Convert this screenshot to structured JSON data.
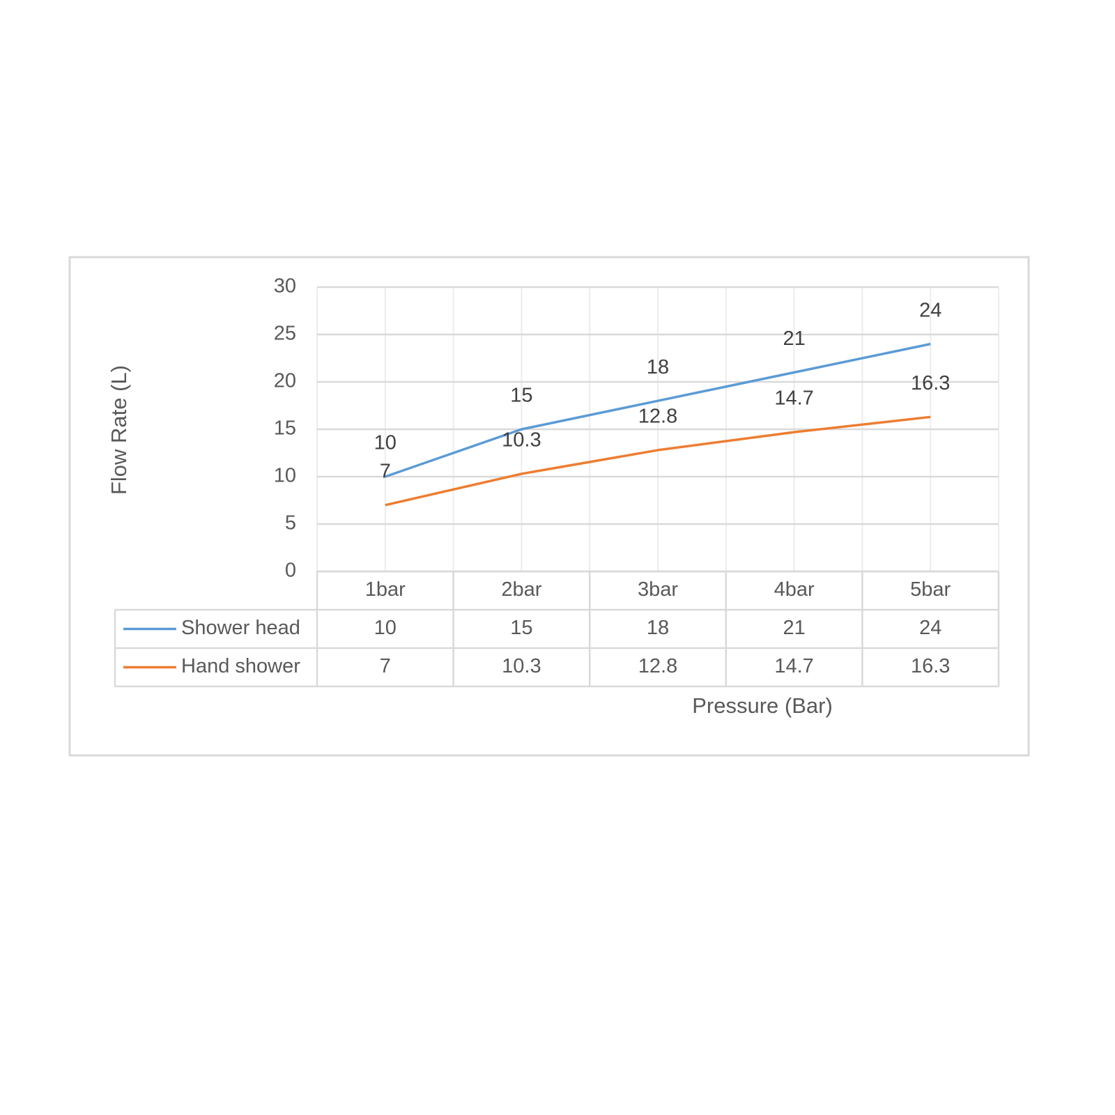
{
  "chart_data": {
    "type": "line",
    "x_label": "Pressure (Bar)",
    "y_label": "Flow Rate (L)",
    "categories": [
      "1bar",
      "2bar",
      "3bar",
      "4bar",
      "5bar"
    ],
    "series": [
      {
        "name": "Shower head",
        "color": "#5b9bd5",
        "values": [
          10,
          15,
          18,
          21,
          24
        ]
      },
      {
        "name": "Hand shower",
        "color": "#ed7d31",
        "values": [
          7,
          10.3,
          12.8,
          14.7,
          16.3
        ]
      }
    ],
    "ylim": [
      0,
      30
    ],
    "yticks": [
      0,
      5,
      10,
      15,
      20,
      25,
      30
    ],
    "grid": true,
    "data_table": true
  }
}
